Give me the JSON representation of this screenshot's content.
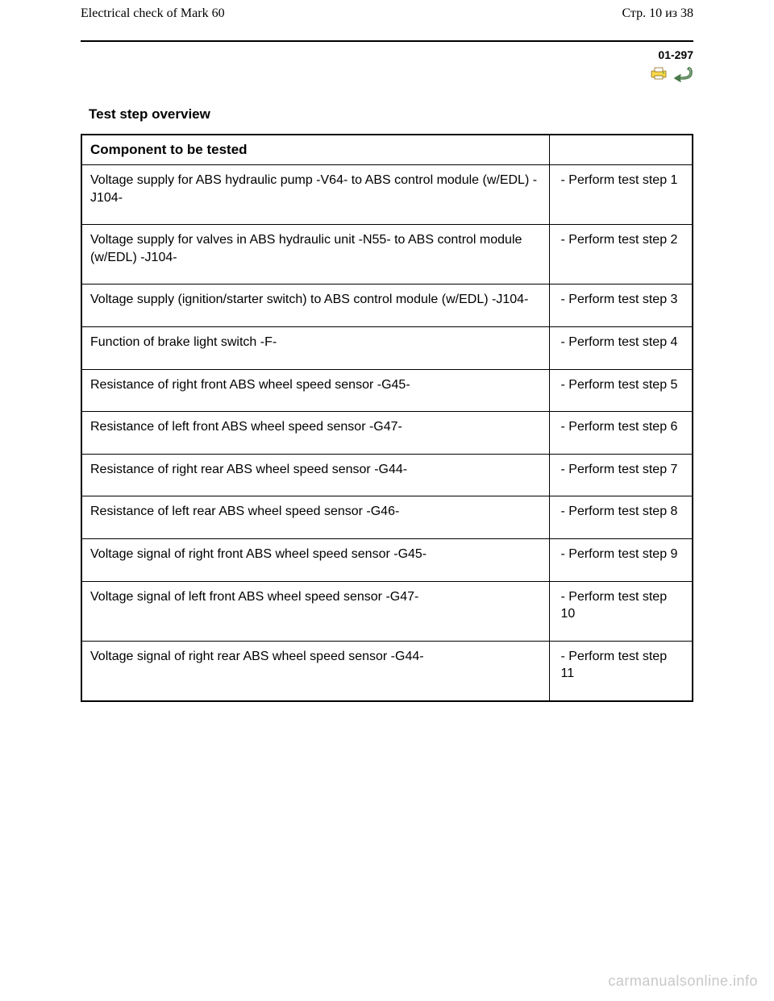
{
  "header": {
    "left": "Electrical check of Mark 60",
    "right": "Стр. 10 из 38"
  },
  "page_ref": "01-297",
  "section_title": "Test step overview",
  "table": {
    "header_left": "Component to be tested",
    "header_right": "",
    "rows": [
      {
        "component": "Voltage supply for ABS hydraulic pump -V64- to ABS control module (w/EDL) -J104-",
        "action": "- Perform test step 1"
      },
      {
        "component": "Voltage supply for valves in ABS hydraulic unit -N55- to ABS control module (w/EDL) -J104-",
        "action": "- Perform test step 2"
      },
      {
        "component": "Voltage supply (ignition/starter switch) to ABS control module (w/EDL) -J104-",
        "action": "- Perform test step 3"
      },
      {
        "component": "Function of brake light switch -F-",
        "action": "- Perform test step 4"
      },
      {
        "component": "Resistance of right front ABS wheel speed sensor -G45-",
        "action": "- Perform test step 5"
      },
      {
        "component": "Resistance of left front ABS wheel speed sensor -G47-",
        "action": "- Perform test step 6"
      },
      {
        "component": "Resistance of right rear ABS wheel speed sensor -G44-",
        "action": "- Perform test step 7"
      },
      {
        "component": "Resistance of left rear ABS wheel speed sensor -G46-",
        "action": "- Perform test step 8"
      },
      {
        "component": "Voltage signal of right front ABS wheel speed sensor -G45-",
        "action": "- Perform test step 9"
      },
      {
        "component": "Voltage signal of left front ABS wheel speed sensor -G47-",
        "action": "- Perform test step 10"
      },
      {
        "component": "Voltage signal of right rear ABS wheel speed sensor -G44-",
        "action": "- Perform test step 11"
      }
    ]
  },
  "watermark": "carmanualsonline.info"
}
